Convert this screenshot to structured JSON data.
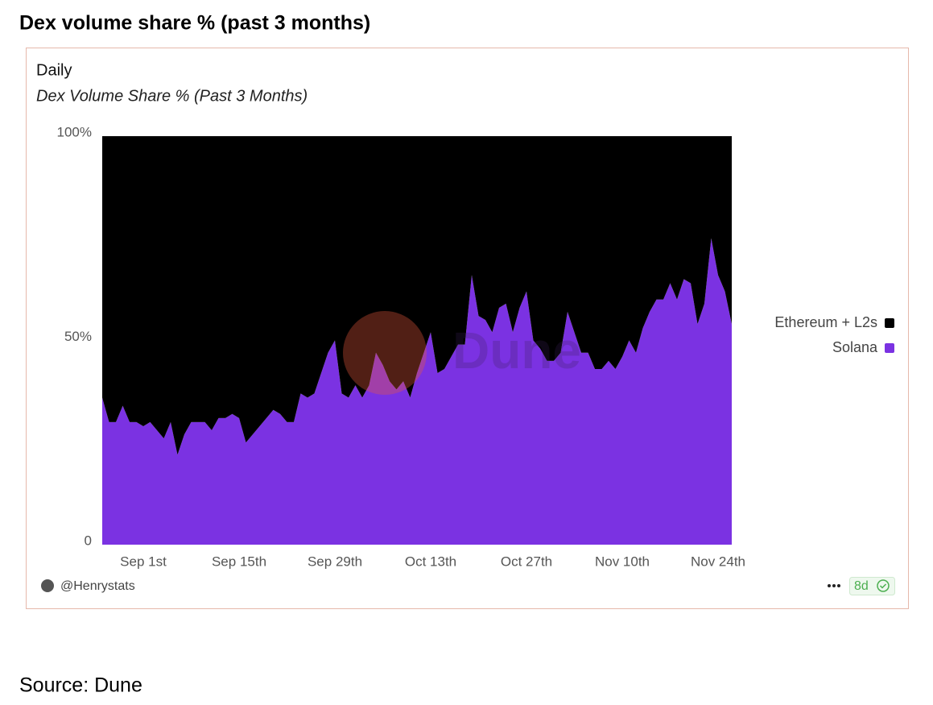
{
  "header": {
    "title": "Dex volume share % (past 3 months)"
  },
  "card": {
    "tab": "Daily"
  },
  "chart_data": {
    "type": "area",
    "stacked": true,
    "title": "Dex Volume Share % (Past 3 Months)",
    "watermark": "Dune",
    "categories": [
      null,
      null,
      null,
      null,
      null,
      null,
      "Sep 1st",
      null,
      null,
      null,
      null,
      null,
      null,
      null,
      null,
      null,
      null,
      null,
      null,
      null,
      "Sep 15th",
      null,
      null,
      null,
      null,
      null,
      null,
      null,
      null,
      null,
      null,
      null,
      null,
      null,
      "Sep 29th",
      null,
      null,
      null,
      null,
      null,
      null,
      null,
      null,
      null,
      null,
      null,
      null,
      null,
      "Oct 13th",
      null,
      null,
      null,
      null,
      null,
      null,
      null,
      null,
      null,
      null,
      null,
      null,
      null,
      "Oct 27th",
      null,
      null,
      null,
      null,
      null,
      null,
      null,
      null,
      null,
      null,
      null,
      null,
      null,
      "Nov 10th",
      null,
      null,
      null,
      null,
      null,
      null,
      null,
      null,
      null,
      null,
      null,
      null,
      null,
      "Nov 24th",
      null,
      null
    ],
    "series": [
      {
        "name": "Ethereum + L2s",
        "color": "#000000",
        "values": [
          64,
          70,
          70,
          66,
          70,
          70,
          71,
          70,
          72,
          74,
          70,
          78,
          73,
          70,
          70,
          70,
          72,
          69,
          69,
          68,
          69,
          75,
          73,
          71,
          69,
          67,
          68,
          70,
          70,
          63,
          64,
          63,
          58,
          53,
          50,
          63,
          64,
          61,
          64,
          61,
          53,
          56,
          60,
          62,
          60,
          64,
          58,
          53,
          48,
          58,
          57,
          54,
          51,
          51,
          34,
          44,
          45,
          48,
          42,
          41,
          48,
          42,
          38,
          50,
          52,
          55,
          55,
          53,
          43,
          48,
          53,
          53,
          57,
          57,
          55,
          57,
          54,
          50,
          53,
          47,
          43,
          40,
          40,
          36,
          40,
          35,
          36,
          46,
          41,
          25,
          34,
          38,
          46
        ]
      },
      {
        "name": "Solana",
        "color": "#7b32e2",
        "values": [
          36,
          30,
          30,
          34,
          30,
          30,
          29,
          30,
          28,
          26,
          30,
          22,
          27,
          30,
          30,
          30,
          28,
          31,
          31,
          32,
          31,
          25,
          27,
          29,
          31,
          33,
          32,
          30,
          30,
          37,
          36,
          37,
          42,
          47,
          50,
          37,
          36,
          39,
          36,
          39,
          47,
          44,
          40,
          38,
          40,
          36,
          42,
          47,
          52,
          42,
          43,
          46,
          49,
          49,
          66,
          56,
          55,
          52,
          58,
          59,
          52,
          58,
          62,
          50,
          48,
          45,
          45,
          47,
          57,
          52,
          47,
          47,
          43,
          43,
          45,
          43,
          46,
          50,
          47,
          53,
          57,
          60,
          60,
          64,
          60,
          65,
          64,
          54,
          59,
          75,
          66,
          62,
          54
        ]
      }
    ],
    "ylim": [
      0,
      100
    ],
    "yticks": [
      0,
      {
        "value": 50,
        "label": "50%"
      },
      {
        "value": 100,
        "label": "100%"
      }
    ],
    "legend": "right"
  },
  "footer": {
    "author": "@Henrystats",
    "age": "8d"
  },
  "source": "Source: Dune"
}
